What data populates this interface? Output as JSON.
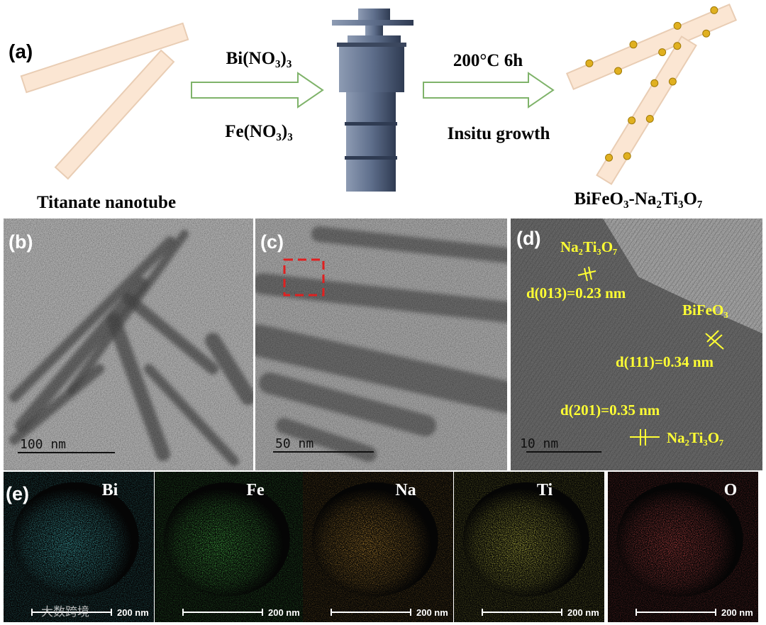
{
  "panel_a": {
    "label": "(a)",
    "reagents": [
      "Bi(NO₃)₃",
      "Fe(NO₃)₃"
    ],
    "conditions": [
      "200°C 6h",
      "Insitu growth"
    ],
    "start": "Titanate nanotube",
    "product": "BiFeO₃-Na₂Ti₃O₇"
  },
  "panel_b": {
    "label": "(b)",
    "scale": "100 nm"
  },
  "panel_c": {
    "label": "(c)",
    "scale": "50 nm"
  },
  "panel_d": {
    "label": "(d)",
    "scale": "10 nm",
    "annotations": [
      "Na₂Ti₃O₇",
      "d(013)=0.23 nm",
      "BiFeO₃",
      "d(111)=0.34 nm",
      "d(201)=0.35 nm",
      "Na₂Ti₃O₇"
    ]
  },
  "panel_e": {
    "label": "(e)",
    "maps": [
      {
        "element": "Bi",
        "scale": "200 nm"
      },
      {
        "element": "Fe",
        "scale": "200 nm"
      },
      {
        "element": "Na",
        "scale": "200 nm"
      },
      {
        "element": "Ti",
        "scale": "200 nm"
      },
      {
        "element": "O",
        "scale": "200 nm"
      }
    ]
  },
  "watermark": "大数跨境"
}
